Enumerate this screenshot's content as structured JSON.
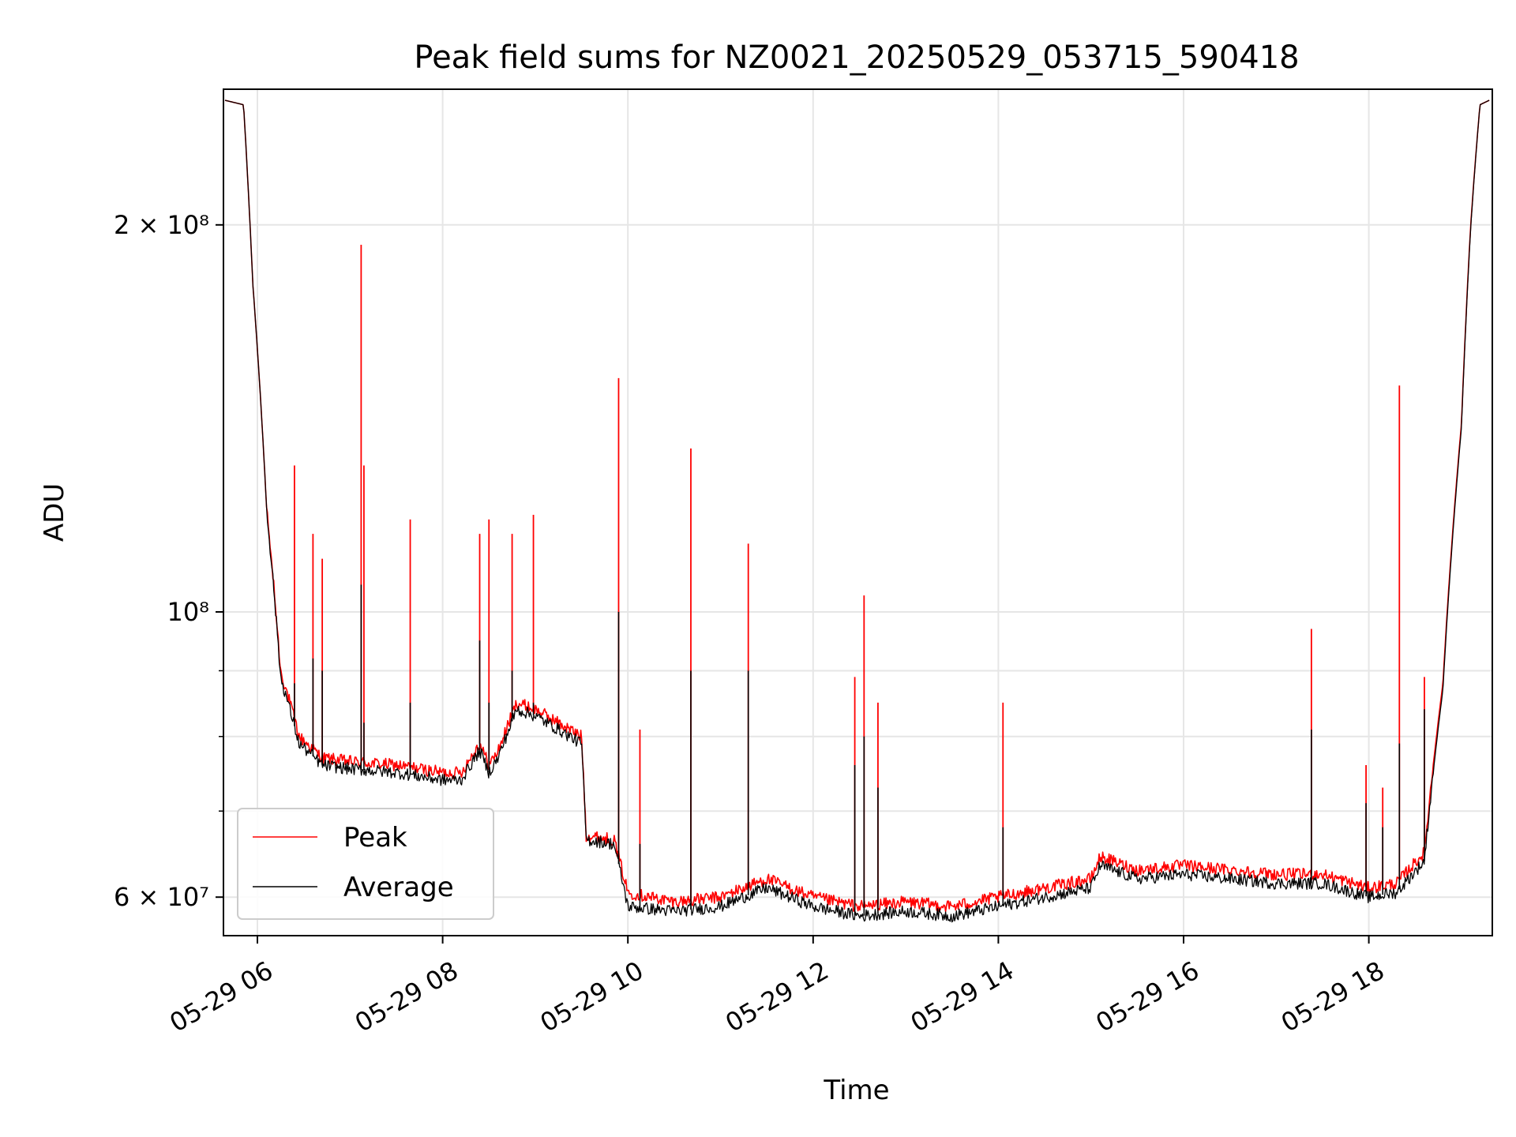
{
  "chart_data": {
    "type": "line",
    "title": "Peak field sums for NZ0021_20250529_053715_590418",
    "xlabel": "Time",
    "ylabel": "ADU",
    "yscale": "log",
    "grid": true,
    "legend_position": "lower-left",
    "xlim": [
      "05-29 05:38",
      "05-29 19:20"
    ],
    "ylim": [
      56000000,
      255000000
    ],
    "x_ticks": [
      "05-29 06",
      "05-29 08",
      "05-29 10",
      "05-29 12",
      "05-29 14",
      "05-29 16",
      "05-29 18"
    ],
    "x_tick_hours": [
      6,
      8,
      10,
      12,
      14,
      16,
      18
    ],
    "y_major_ticks": [
      {
        "label": "2 × 10⁸",
        "value": 200000000
      },
      {
        "label": "10⁸",
        "value": 100000000
      },
      {
        "label": "6 × 10⁷",
        "value": 60000000
      }
    ],
    "y_grid_values": [
      60000000,
      70000000,
      80000000,
      90000000,
      100000000,
      200000000
    ],
    "x_hours": [
      5.65,
      5.85,
      5.95,
      6.1,
      6.25,
      6.45,
      6.7,
      7.0,
      7.5,
      8.0,
      8.2,
      8.4,
      8.5,
      8.6,
      8.8,
      9.0,
      9.5,
      9.55,
      9.85,
      10.0,
      10.5,
      11.0,
      11.5,
      12.0,
      12.5,
      13.0,
      13.5,
      14.0,
      14.5,
      15.0,
      15.1,
      15.5,
      16.0,
      16.5,
      17.0,
      17.5,
      18.0,
      18.3,
      18.6,
      18.8,
      19.0,
      19.1,
      19.2,
      19.3
    ],
    "series": [
      {
        "name": "Peak",
        "color": "#ff0000",
        "values": [
          250000000,
          248000000,
          180000000,
          120000000,
          90000000,
          80000000,
          77000000,
          76500000,
          76000000,
          75000000,
          75000000,
          79000000,
          76000000,
          78000000,
          85000000,
          84000000,
          80000000,
          67000000,
          66500000,
          60500000,
          59500000,
          60000000,
          62000000,
          60000000,
          59000000,
          59500000,
          59000000,
          60000000,
          61000000,
          62000000,
          64500000,
          63000000,
          63500000,
          63000000,
          62500000,
          62500000,
          61000000,
          61500000,
          65000000,
          88000000,
          140000000,
          200000000,
          248000000,
          250000000
        ]
      },
      {
        "name": "Average",
        "color": "#000000",
        "values": [
          250000000,
          248000000,
          180000000,
          120000000,
          89000000,
          79000000,
          76000000,
          75500000,
          75000000,
          74000000,
          74000000,
          78000000,
          75000000,
          77000000,
          84000000,
          83000000,
          79000000,
          66500000,
          66000000,
          59000000,
          58500000,
          59000000,
          61000000,
          59000000,
          58000000,
          58500000,
          58000000,
          59000000,
          60000000,
          61000000,
          63500000,
          62000000,
          62500000,
          62000000,
          61500000,
          61500000,
          60000000,
          60500000,
          64000000,
          87000000,
          139000000,
          199000000,
          248000000,
          250000000
        ]
      }
    ],
    "spikes": [
      {
        "x": 6.4,
        "peak": 130000000,
        "average": 88000000
      },
      {
        "x": 6.6,
        "peak": 115000000,
        "average": 92000000
      },
      {
        "x": 6.7,
        "peak": 110000000,
        "average": 90000000
      },
      {
        "x": 7.12,
        "peak": 193000000,
        "average": 105000000
      },
      {
        "x": 7.15,
        "peak": 130000000,
        "average": 82000000
      },
      {
        "x": 7.65,
        "peak": 118000000,
        "average": 85000000
      },
      {
        "x": 8.4,
        "peak": 115000000,
        "average": 95000000
      },
      {
        "x": 8.5,
        "peak": 118000000,
        "average": 85000000
      },
      {
        "x": 8.75,
        "peak": 115000000,
        "average": 90000000
      },
      {
        "x": 8.98,
        "peak": 119000000,
        "average": 85000000
      },
      {
        "x": 9.9,
        "peak": 152000000,
        "average": 100000000
      },
      {
        "x": 10.13,
        "peak": 81000000,
        "average": 66000000
      },
      {
        "x": 10.68,
        "peak": 134000000,
        "average": 90000000
      },
      {
        "x": 11.3,
        "peak": 113000000,
        "average": 90000000
      },
      {
        "x": 12.45,
        "peak": 89000000,
        "average": 76000000
      },
      {
        "x": 12.55,
        "peak": 103000000,
        "average": 80000000
      },
      {
        "x": 12.7,
        "peak": 85000000,
        "average": 73000000
      },
      {
        "x": 14.05,
        "peak": 85000000,
        "average": 68000000
      },
      {
        "x": 17.38,
        "peak": 97000000,
        "average": 81000000
      },
      {
        "x": 17.97,
        "peak": 76000000,
        "average": 71000000
      },
      {
        "x": 18.15,
        "peak": 73000000,
        "average": 68000000
      },
      {
        "x": 18.33,
        "peak": 150000000,
        "average": 79000000
      },
      {
        "x": 18.6,
        "peak": 89000000,
        "average": 84000000
      }
    ],
    "legend": [
      {
        "name": "Peak",
        "color": "#ff0000"
      },
      {
        "name": "Average",
        "color": "#000000"
      }
    ]
  }
}
